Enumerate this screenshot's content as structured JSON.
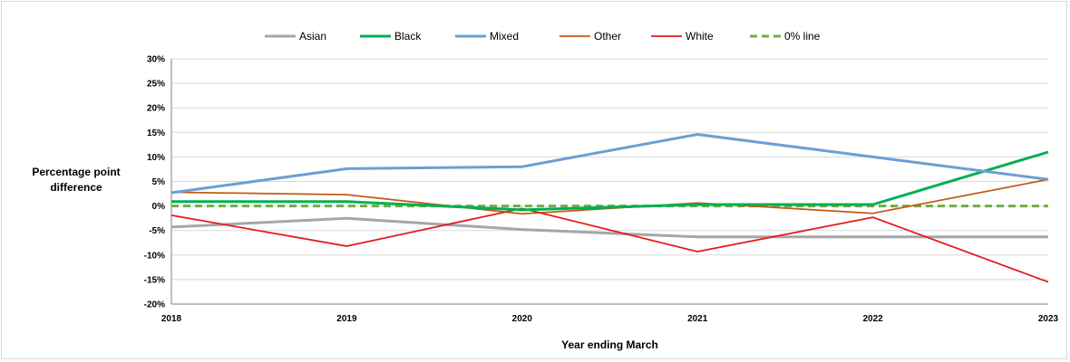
{
  "chart_data": {
    "type": "line",
    "title": "",
    "xlabel": "Year ending March",
    "ylabel": "Percentage point difference",
    "x": [
      "2018",
      "2019",
      "2020",
      "2021",
      "2022",
      "2023"
    ],
    "ylim": [
      -20,
      30
    ],
    "yticks": [
      30,
      25,
      20,
      15,
      10,
      5,
      0,
      -5,
      -10,
      -15,
      -20
    ],
    "ytick_labels": [
      "30%",
      "25%",
      "20%",
      "15%",
      "10%",
      "5%",
      "0%",
      "-5%",
      "-10%",
      "-15%",
      "-20%"
    ],
    "grid": true,
    "legend_position": "top",
    "series": [
      {
        "name": "Asian",
        "values": [
          -4.3,
          -2.5,
          -4.8,
          -6.3,
          -6.3,
          -6.3
        ],
        "color": "#a6a6a6",
        "style": "solid",
        "width": "thick"
      },
      {
        "name": "Black",
        "values": [
          0.9,
          0.9,
          -0.8,
          0.3,
          0.3,
          11.0
        ],
        "color": "#00b050",
        "style": "solid",
        "width": "thick"
      },
      {
        "name": "Mixed",
        "values": [
          2.7,
          7.6,
          8.0,
          14.6,
          10.0,
          5.4
        ],
        "color": "#6a9fd4",
        "style": "solid",
        "width": "thick"
      },
      {
        "name": "Other",
        "values": [
          2.8,
          2.3,
          -1.6,
          0.6,
          -1.5,
          5.4
        ],
        "color": "#c55a11",
        "style": "solid",
        "width": "thin"
      },
      {
        "name": "White",
        "values": [
          -1.9,
          -8.2,
          -0.5,
          -9.3,
          -2.3,
          -15.5
        ],
        "color": "#e31a1c",
        "style": "solid",
        "width": "thin"
      },
      {
        "name": "0% line",
        "values": [
          0,
          0,
          0,
          0,
          0,
          0
        ],
        "color": "#70ad47",
        "style": "dashed",
        "width": "thick"
      }
    ]
  }
}
